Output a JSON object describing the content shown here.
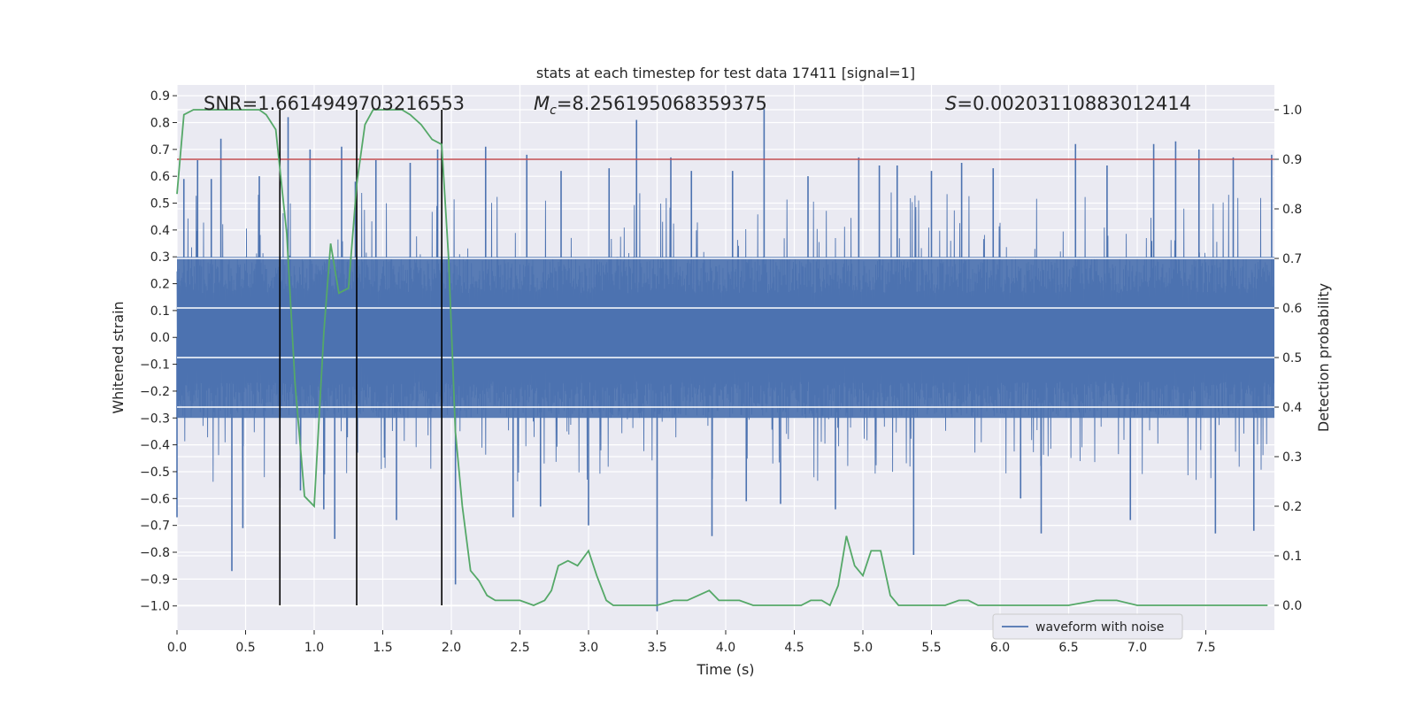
{
  "chart_data": {
    "type": "line",
    "title": "stats at each timestep for test data 17411 [signal=1]",
    "xlabel": "Time (s)",
    "ylabel": "Whitened strain",
    "y2label": "Detection probability",
    "xlim": [
      0.0,
      8.0
    ],
    "ylim": [
      -1.09,
      0.94
    ],
    "y2lim": [
      -0.05,
      1.05
    ],
    "xticks": [
      "0.0",
      "0.5",
      "1.0",
      "1.5",
      "2.0",
      "2.5",
      "3.0",
      "3.5",
      "4.0",
      "4.5",
      "5.0",
      "5.5",
      "6.0",
      "6.5",
      "7.0",
      "7.5"
    ],
    "yticks": [
      "0.9",
      "0.8",
      "0.7",
      "0.6",
      "0.5",
      "0.4",
      "0.3",
      "0.2",
      "0.1",
      "0.0",
      "−0.1",
      "−0.2",
      "−0.3",
      "−0.4",
      "−0.5",
      "−0.6",
      "−0.7",
      "−0.8",
      "−0.9",
      "−1.0"
    ],
    "y2ticks": [
      "1.0",
      "0.9",
      "0.8",
      "0.7",
      "0.6",
      "0.5",
      "0.4",
      "0.3",
      "0.2",
      "0.1",
      "0.0"
    ],
    "annotations": {
      "snr": "SNR=1.6614949703216553",
      "mc_symbol": "M",
      "mc_sub": "c",
      "mc_value": "=8.256195068359375",
      "s_symbol": "S",
      "s_value": "=0.00203110883012414"
    },
    "threshold": {
      "y2": 0.9,
      "color": "#c44e52"
    },
    "vertical_lines": [
      0.75,
      1.31,
      1.93
    ],
    "waveform": {
      "name": "waveform with noise",
      "color": "#4c72b0",
      "core_amplitude": 0.3,
      "spikes": [
        {
          "x": 0.0,
          "y": -0.67
        },
        {
          "x": 0.05,
          "y": 0.59
        },
        {
          "x": 0.15,
          "y": 0.66
        },
        {
          "x": 0.25,
          "y": 0.59
        },
        {
          "x": 0.32,
          "y": 0.74
        },
        {
          "x": 0.4,
          "y": -0.87
        },
        {
          "x": 0.48,
          "y": -0.71
        },
        {
          "x": 0.6,
          "y": 0.6
        },
        {
          "x": 0.75,
          "y": -0.56
        },
        {
          "x": 0.81,
          "y": 0.82
        },
        {
          "x": 0.9,
          "y": -0.57
        },
        {
          "x": 0.97,
          "y": 0.7
        },
        {
          "x": 1.07,
          "y": -0.64
        },
        {
          "x": 1.15,
          "y": -0.75
        },
        {
          "x": 1.2,
          "y": 0.71
        },
        {
          "x": 1.3,
          "y": 0.58
        },
        {
          "x": 1.45,
          "y": 0.66
        },
        {
          "x": 1.6,
          "y": -0.68
        },
        {
          "x": 1.7,
          "y": 0.65
        },
        {
          "x": 1.9,
          "y": 0.7
        },
        {
          "x": 2.03,
          "y": -0.92
        },
        {
          "x": 2.25,
          "y": 0.71
        },
        {
          "x": 2.45,
          "y": -0.67
        },
        {
          "x": 2.55,
          "y": 0.68
        },
        {
          "x": 2.65,
          "y": -0.63
        },
        {
          "x": 2.8,
          "y": 0.62
        },
        {
          "x": 3.0,
          "y": -0.7
        },
        {
          "x": 3.15,
          "y": 0.63
        },
        {
          "x": 3.35,
          "y": 0.81
        },
        {
          "x": 3.5,
          "y": -1.02
        },
        {
          "x": 3.6,
          "y": 0.67
        },
        {
          "x": 3.75,
          "y": 0.62
        },
        {
          "x": 3.9,
          "y": -0.74
        },
        {
          "x": 4.05,
          "y": 0.62
        },
        {
          "x": 4.15,
          "y": -0.61
        },
        {
          "x": 4.28,
          "y": 0.85
        },
        {
          "x": 4.4,
          "y": -0.62
        },
        {
          "x": 4.6,
          "y": 0.6
        },
        {
          "x": 4.8,
          "y": -0.64
        },
        {
          "x": 4.97,
          "y": 0.67
        },
        {
          "x": 5.12,
          "y": 0.64
        },
        {
          "x": 5.25,
          "y": 0.64
        },
        {
          "x": 5.37,
          "y": -0.81
        },
        {
          "x": 5.5,
          "y": 0.62
        },
        {
          "x": 5.72,
          "y": 0.65
        },
        {
          "x": 5.95,
          "y": 0.63
        },
        {
          "x": 6.15,
          "y": -0.6
        },
        {
          "x": 6.3,
          "y": -0.73
        },
        {
          "x": 6.55,
          "y": 0.72
        },
        {
          "x": 6.78,
          "y": 0.64
        },
        {
          "x": 6.95,
          "y": -0.68
        },
        {
          "x": 7.12,
          "y": 0.72
        },
        {
          "x": 7.28,
          "y": 0.73
        },
        {
          "x": 7.45,
          "y": 0.7
        },
        {
          "x": 7.57,
          "y": -0.73
        },
        {
          "x": 7.7,
          "y": 0.67
        },
        {
          "x": 7.85,
          "y": -0.72
        },
        {
          "x": 7.98,
          "y": 0.68
        }
      ]
    },
    "probability": {
      "color": "#55a868",
      "x": [
        0.0,
        0.05,
        0.12,
        0.2,
        0.3,
        0.4,
        0.5,
        0.6,
        0.65,
        0.72,
        0.8,
        0.86,
        0.93,
        1.0,
        1.07,
        1.12,
        1.18,
        1.25,
        1.31,
        1.37,
        1.43,
        1.5,
        1.57,
        1.64,
        1.7,
        1.78,
        1.86,
        1.93,
        1.98,
        2.03,
        2.08,
        2.14,
        2.2,
        2.26,
        2.32,
        2.4,
        2.5,
        2.6,
        2.68,
        2.73,
        2.78,
        2.85,
        2.92,
        3.0,
        3.06,
        3.13,
        3.18,
        3.3,
        3.5,
        3.62,
        3.72,
        3.8,
        3.88,
        3.95,
        4.0,
        4.1,
        4.2,
        4.3,
        4.45,
        4.55,
        4.62,
        4.7,
        4.76,
        4.82,
        4.88,
        4.94,
        5.0,
        5.06,
        5.13,
        5.2,
        5.26,
        5.32,
        5.45,
        5.6,
        5.7,
        5.77,
        5.84,
        5.95,
        6.1,
        6.3,
        6.5,
        6.7,
        6.85,
        7.0,
        7.1,
        7.3,
        7.6,
        7.95
      ],
      "y": [
        0.83,
        0.99,
        1.0,
        1.0,
        1.0,
        1.0,
        1.0,
        1.0,
        0.99,
        0.96,
        0.75,
        0.45,
        0.22,
        0.2,
        0.55,
        0.73,
        0.63,
        0.64,
        0.85,
        0.97,
        1.0,
        1.0,
        1.0,
        1.0,
        0.99,
        0.97,
        0.94,
        0.93,
        0.7,
        0.35,
        0.2,
        0.07,
        0.05,
        0.02,
        0.01,
        0.01,
        0.01,
        0.0,
        0.01,
        0.03,
        0.08,
        0.09,
        0.08,
        0.11,
        0.06,
        0.01,
        0.0,
        0.0,
        0.0,
        0.01,
        0.01,
        0.02,
        0.03,
        0.01,
        0.01,
        0.01,
        0.0,
        0.0,
        0.0,
        0.0,
        0.01,
        0.01,
        0.0,
        0.04,
        0.14,
        0.08,
        0.06,
        0.11,
        0.11,
        0.02,
        0.0,
        0.0,
        0.0,
        0.0,
        0.01,
        0.01,
        0.0,
        0.0,
        0.0,
        0.0,
        0.0,
        0.01,
        0.01,
        0.0,
        0.0,
        0.0,
        0.0,
        0.0
      ]
    },
    "legend": {
      "placement": "lower-right",
      "entries": [
        "waveform with noise"
      ]
    },
    "grid": true
  }
}
